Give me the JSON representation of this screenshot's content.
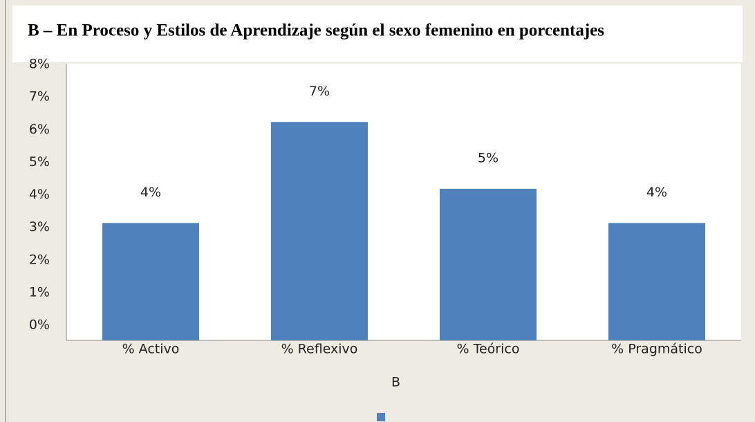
{
  "chart_data": {
    "type": "bar",
    "title": "B – En Proceso y Estilos de Aprendizaje según el sexo femenino en porcentajes",
    "categories": [
      "% Activo",
      "% Reflexivo",
      "% Teórico",
      "% Pragmático"
    ],
    "series": [
      {
        "name": "B",
        "color": "#4f81bd",
        "values": [
          3.6,
          6.7,
          4.65,
          3.6
        ],
        "value_labels": [
          "4%",
          "7%",
          "5%",
          "4%"
        ]
      }
    ],
    "ylim": [
      0,
      8
    ],
    "yticks": [
      {
        "value": 0,
        "label": "0%"
      },
      {
        "value": 1,
        "label": "1%"
      },
      {
        "value": 2,
        "label": "2%"
      },
      {
        "value": 3,
        "label": "3%"
      },
      {
        "value": 4,
        "label": "4%"
      },
      {
        "value": 5,
        "label": "5%"
      },
      {
        "value": 6,
        "label": "6%"
      },
      {
        "value": 7,
        "label": "7%"
      },
      {
        "value": 8,
        "label": "8%"
      }
    ],
    "grid": false,
    "legend": "bottom"
  }
}
